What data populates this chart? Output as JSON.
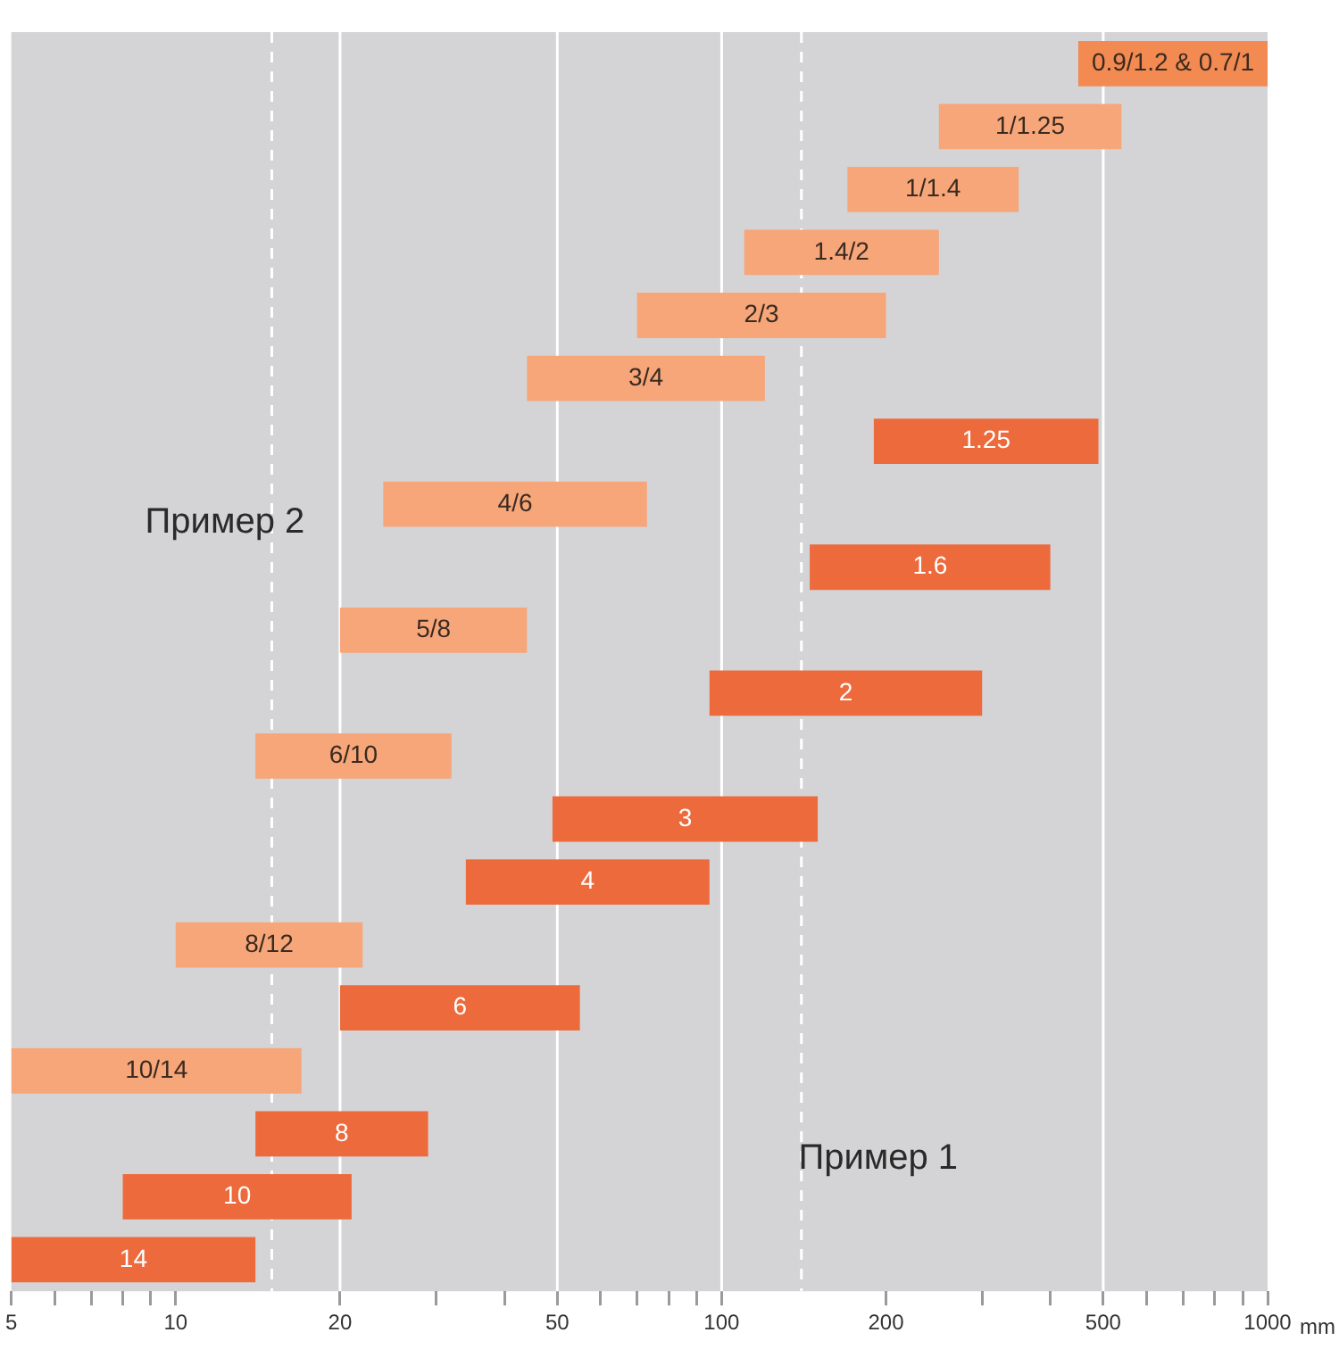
{
  "chart_data": {
    "type": "bar",
    "orientation": "horizontal",
    "log": "x",
    "xlabel": "mm",
    "categories": [
      "0.9/1.2 & 0.7/1",
      "1/1.25",
      "1/1.4",
      "1.4/2",
      "2/3",
      "3/4",
      "1.25",
      "4/6",
      "1.6",
      "5/8",
      "2",
      "6/10",
      "3",
      "4",
      "8/12",
      "6",
      "10/14",
      "8",
      "10",
      "14"
    ],
    "base": [
      450,
      250,
      170,
      110,
      70,
      44,
      190,
      24,
      145,
      20,
      95,
      14,
      49,
      34,
      10,
      20,
      5,
      14,
      8,
      5
    ],
    "values": [
      550,
      290,
      180,
      140,
      130,
      76,
      300,
      49,
      255,
      24,
      205,
      18,
      101,
      61,
      12,
      35,
      12,
      15,
      13,
      9
    ],
    "colors": [
      "#f28a52",
      "#f6a679",
      "#f6a679",
      "#f6a679",
      "#f6a679",
      "#f6a679",
      "#ec6a3c",
      "#f6a679",
      "#ec6a3c",
      "#f6a679",
      "#ec6a3c",
      "#f6a679",
      "#ec6a3c",
      "#ec6a3c",
      "#f6a679",
      "#ec6a3c",
      "#f6a679",
      "#ec6a3c",
      "#ec6a3c",
      "#ec6a3c"
    ],
    "xlim": [
      5,
      1000
    ],
    "xticks": [
      5,
      {
        "value": 6,
        "label": null
      },
      {
        "value": 7,
        "label": null
      },
      {
        "value": 8,
        "label": null
      },
      {
        "value": 9,
        "label": null
      },
      10,
      20,
      {
        "value": 30,
        "label": null
      },
      {
        "value": 40,
        "label": null
      },
      50,
      {
        "value": 60,
        "label": null
      },
      {
        "value": 70,
        "label": null
      },
      {
        "value": 80,
        "label": null
      },
      {
        "value": 90,
        "label": null
      },
      100,
      200,
      {
        "value": 300,
        "label": null
      },
      {
        "value": 400,
        "label": null
      },
      500,
      {
        "value": 600,
        "label": null
      },
      {
        "value": 700,
        "label": null
      },
      {
        "value": 800,
        "label": null
      },
      {
        "value": 900,
        "label": null
      },
      1000
    ],
    "grid": false,
    "legend": false,
    "ref_lines": [
      {
        "axis": "x",
        "value": 20,
        "color": "#ffffff",
        "line_style": "solid"
      },
      {
        "axis": "x",
        "value": 50,
        "color": "#ffffff",
        "line_style": "solid"
      },
      {
        "axis": "x",
        "value": 100,
        "color": "#ffffff",
        "line_style": "solid"
      },
      {
        "axis": "x",
        "value": 500,
        "color": "#ffffff",
        "line_style": "solid"
      },
      {
        "axis": "x",
        "value": 15,
        "color": "#ffffff",
        "line_style": "dashed"
      },
      {
        "axis": "x",
        "value": 140,
        "color": "#ffffff",
        "line_style": "dashed"
      }
    ],
    "annotations": [
      "Пример 2",
      "Пример 1"
    ]
  }
}
